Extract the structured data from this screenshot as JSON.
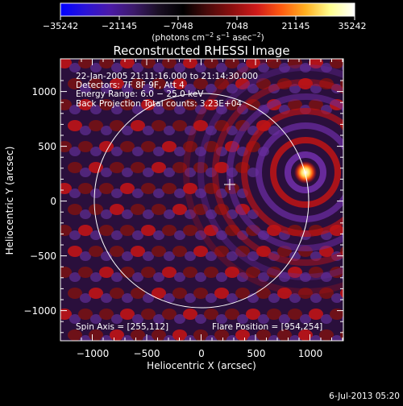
{
  "colorbar": {
    "tick_labels": [
      "−35242",
      "−21145",
      "−7048",
      "7048",
      "21145",
      "35242"
    ],
    "unit_text": "(photons cm",
    "unit_exp1": "−2",
    "unit_mid": " s",
    "unit_exp2": "−1",
    "unit_mid2": " asec",
    "unit_exp3": "−2",
    "unit_close": ")",
    "colors": [
      "#0000ff",
      "#2a13d8",
      "#4b1aa8",
      "#3c1a6a",
      "#1a0f24",
      "#000000",
      "#4a0a0a",
      "#8c0f0f",
      "#d01a1a",
      "#ff5a10",
      "#ffb020",
      "#ffff90",
      "#ffffff"
    ]
  },
  "image": {
    "title": "Reconstructed RHESSI Image",
    "info_lines": [
      "22-Jan-2005 21:11:16.000 to 21:14:30.000",
      "Detectors: 7F 8F 9F, Att 4",
      "Energy Range: 6.0 − 25.0 keV",
      "Back Projection    Total counts: 3.23E+04"
    ],
    "spin_axis": "Spin Axis = [255,112]",
    "flare_position": "Flare Position = [954,254]",
    "xlabel": "Heliocentric X (arcsec)",
    "ylabel": "Heliocentric Y (arcsec)",
    "xticks": [
      "−1000",
      "−500",
      "0",
      "500",
      "1000"
    ],
    "yticks": [
      "1000",
      "500",
      "0",
      "−500",
      "−1000"
    ],
    "footer_date": "6-Jul-2013 05:20"
  }
}
